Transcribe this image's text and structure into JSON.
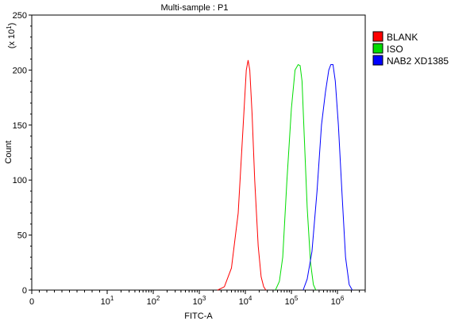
{
  "chart_data": {
    "type": "line",
    "title": "Multi-sample : P1",
    "xlabel": "FITC-A",
    "ylabel": "Count",
    "y_multiplier_label": "(x 10",
    "y_multiplier_exp": "1",
    "y_multiplier_close": ")",
    "xscale": "log",
    "ylim": [
      0,
      250
    ],
    "y_ticks": [
      "0",
      "50",
      "100",
      "150",
      "200",
      "250"
    ],
    "x_ticks": [
      {
        "base": "0",
        "exp": ""
      },
      {
        "base": "10",
        "exp": "1"
      },
      {
        "base": "10",
        "exp": "2"
      },
      {
        "base": "10",
        "exp": "3"
      },
      {
        "base": "10",
        "exp": "4"
      },
      {
        "base": "10",
        "exp": "5"
      },
      {
        "base": "10",
        "exp": "6"
      }
    ],
    "legend_position": "right",
    "grid": false,
    "series": [
      {
        "name": "BLANK",
        "color": "#ff0000",
        "x": [
          2500,
          3500,
          5000,
          7000,
          9000,
          10500,
          11500,
          12500,
          14000,
          16000,
          19000,
          22000,
          25000,
          28000
        ],
        "y": [
          0,
          3,
          20,
          70,
          150,
          200,
          209,
          200,
          160,
          100,
          40,
          12,
          3,
          0
        ]
      },
      {
        "name": "ISO",
        "color": "#00dd00",
        "x": [
          45000,
          55000,
          65000,
          80000,
          100000,
          120000,
          140000,
          155000,
          170000,
          190000,
          220000,
          260000,
          300000,
          340000
        ],
        "y": [
          0,
          8,
          30,
          100,
          165,
          200,
          205,
          204,
          190,
          140,
          75,
          25,
          5,
          0
        ]
      },
      {
        "name": "NAB2 XD1385",
        "color": "#0000ff",
        "x": [
          180000,
          220000,
          280000,
          360000,
          450000,
          550000,
          650000,
          720000,
          800000,
          900000,
          1050000,
          1250000,
          1500000,
          1800000,
          2100000
        ],
        "y": [
          0,
          10,
          35,
          90,
          150,
          180,
          200,
          205,
          205,
          190,
          150,
          90,
          30,
          5,
          0
        ]
      }
    ]
  }
}
